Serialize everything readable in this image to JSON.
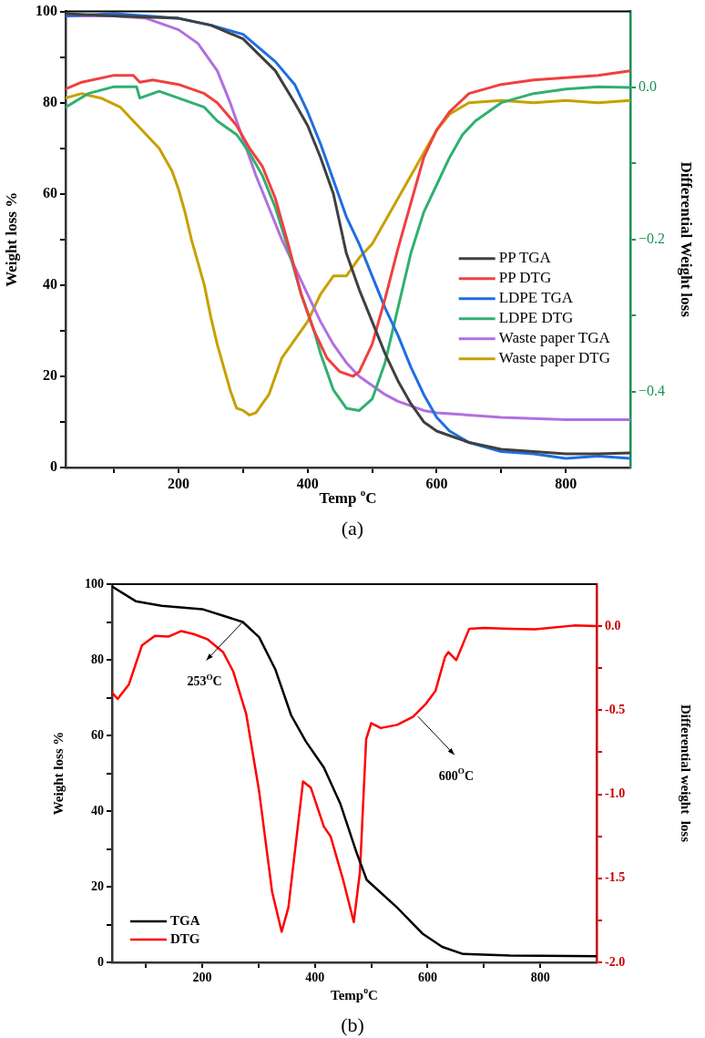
{
  "chart_data": [
    {
      "type": "line",
      "xlabel": "Temp $^{o}$C",
      "ylabel": "Weight loss %",
      "y2label": "Differential Weight loss",
      "xlim": [
        25,
        900
      ],
      "xticks": [
        {
          "value": 100,
          "label": null
        },
        200,
        {
          "value": 300,
          "label": null
        },
        400,
        {
          "value": 500,
          "label": null
        },
        600,
        {
          "value": 700,
          "label": null
        },
        800
      ],
      "ylim": [
        0,
        100
      ],
      "yticks": [
        0,
        {
          "value": 10,
          "label": null
        },
        20,
        {
          "value": 30,
          "label": null
        },
        40,
        {
          "value": 50,
          "label": null
        },
        60,
        {
          "value": 70,
          "label": null
        },
        80,
        {
          "value": 90,
          "label": null
        },
        100
      ],
      "y2lim": [
        -0.5,
        0.1
      ],
      "y2ticks": [
        {
          "value": -0.4,
          "label": "−0.4"
        },
        {
          "value": -0.3,
          "label": null
        },
        {
          "value": -0.2,
          "label": "−0.2"
        },
        {
          "value": -0.1,
          "label": null
        },
        {
          "value": 0,
          "label": "0.0"
        }
      ],
      "marker": "none",
      "legend": "right",
      "annotations": [
        "(a)"
      ],
      "series": [
        {
          "name": "PP TGA",
          "color": "#404040",
          "x": [
            25,
            100,
            200,
            250,
            300,
            350,
            380,
            400,
            420,
            440,
            460,
            480,
            500,
            520,
            540,
            560,
            580,
            600,
            620,
            650,
            700,
            750,
            800,
            850,
            900
          ],
          "values": [
            99.5,
            99,
            98.5,
            97,
            94,
            87,
            80,
            75,
            68,
            60,
            47,
            39,
            32,
            25,
            19,
            14,
            10,
            8,
            7,
            5.5,
            4,
            3.5,
            3,
            3,
            3.2
          ]
        },
        {
          "name": "PP DTG",
          "color": "#f04040",
          "axis": "y2",
          "x": [
            25,
            50,
            100,
            130,
            140,
            160,
            200,
            240,
            260,
            290,
            310,
            330,
            350,
            370,
            390,
            410,
            430,
            450,
            470,
            480,
            500,
            520,
            540,
            560,
            580,
            600,
            620,
            650,
            700,
            750,
            800,
            850,
            900
          ],
          "values": [
            -0.002,
            0.007,
            0.016,
            0.016,
            0.007,
            0.01,
            0.004,
            -0.008,
            -0.02,
            -0.05,
            -0.08,
            -0.104,
            -0.146,
            -0.206,
            -0.272,
            -0.32,
            -0.356,
            -0.374,
            -0.38,
            -0.374,
            -0.338,
            -0.278,
            -0.212,
            -0.152,
            -0.092,
            -0.056,
            -0.032,
            -0.008,
            0.004,
            0.01,
            0.013,
            0.016,
            0.022
          ]
        },
        {
          "name": "LDPE TGA",
          "color": "#1f6fe0",
          "x": [
            25,
            100,
            200,
            250,
            300,
            350,
            380,
            400,
            420,
            440,
            460,
            480,
            500,
            520,
            540,
            560,
            580,
            600,
            620,
            650,
            700,
            750,
            800,
            850,
            900
          ],
          "values": [
            99,
            99.5,
            98.5,
            97,
            95,
            89,
            84,
            78,
            71,
            63,
            55,
            49,
            42,
            35,
            29,
            22,
            16,
            11,
            8,
            5.5,
            3.5,
            3,
            2,
            2.5,
            2
          ]
        },
        {
          "name": "LDPE DTG",
          "color": "#30b070",
          "axis": "y2",
          "x": [
            25,
            60,
            100,
            135,
            140,
            170,
            200,
            240,
            260,
            290,
            310,
            330,
            350,
            370,
            390,
            410,
            420,
            440,
            460,
            480,
            500,
            520,
            540,
            560,
            580,
            600,
            620,
            640,
            660,
            700,
            750,
            800,
            850,
            900
          ],
          "values": [
            -0.026,
            -0.008,
            0.001,
            0.001,
            -0.014,
            -0.005,
            -0.014,
            -0.026,
            -0.044,
            -0.062,
            -0.086,
            -0.116,
            -0.158,
            -0.212,
            -0.272,
            -0.32,
            -0.35,
            -0.398,
            -0.422,
            -0.425,
            -0.41,
            -0.362,
            -0.29,
            -0.218,
            -0.164,
            -0.128,
            -0.092,
            -0.062,
            -0.044,
            -0.02,
            -0.008,
            -0.002,
            0.001,
            0
          ]
        },
        {
          "name": "Waste paper TGA",
          "color": "#b070e0",
          "x": [
            25,
            100,
            150,
            200,
            230,
            260,
            280,
            300,
            320,
            340,
            360,
            380,
            400,
            420,
            440,
            460,
            480,
            500,
            520,
            540,
            560,
            580,
            600,
            650,
            700,
            800,
            900
          ],
          "values": [
            99,
            99,
            98.5,
            96,
            93,
            87,
            80,
            72,
            64,
            57,
            50,
            44,
            38,
            32,
            27,
            23,
            20,
            18,
            16,
            14.5,
            13.5,
            12.5,
            12,
            11.5,
            11,
            10.5,
            10.5
          ]
        },
        {
          "name": "Waste paper DTG",
          "color": "#c8a000",
          "axis": "y2",
          "x": [
            25,
            50,
            80,
            110,
            130,
            150,
            170,
            190,
            200,
            210,
            220,
            240,
            250,
            260,
            270,
            280,
            290,
            300,
            310,
            320,
            330,
            340,
            350,
            360,
            380,
            400,
            420,
            440,
            460,
            480,
            500,
            520,
            540,
            560,
            580,
            600,
            620,
            650,
            700,
            750,
            800,
            850,
            900
          ],
          "values": [
            -0.014,
            -0.008,
            -0.014,
            -0.026,
            -0.044,
            -0.062,
            -0.08,
            -0.11,
            -0.134,
            -0.164,
            -0.2,
            -0.26,
            -0.302,
            -0.338,
            -0.368,
            -0.398,
            -0.422,
            -0.425,
            -0.431,
            -0.428,
            -0.416,
            -0.404,
            -0.38,
            -0.356,
            -0.332,
            -0.308,
            -0.272,
            -0.248,
            -0.248,
            -0.224,
            -0.206,
            -0.176,
            -0.146,
            -0.116,
            -0.086,
            -0.056,
            -0.035,
            -0.02,
            -0.017,
            -0.02,
            -0.017,
            -0.02,
            -0.017
          ]
        }
      ]
    },
    {
      "type": "line",
      "xlabel": "Temp$^{o}$C",
      "ylabel": "Weight loss %",
      "y2label": "Differential weight  loss",
      "xlim": [
        40,
        900
      ],
      "xticks": [
        {
          "value": 100,
          "label": null
        },
        200,
        {
          "value": 300,
          "label": null
        },
        400,
        {
          "value": 500,
          "label": null
        },
        600,
        {
          "value": 700,
          "label": null
        },
        800
      ],
      "ylim": [
        0,
        100
      ],
      "yticks": [
        0,
        {
          "value": 10,
          "label": null
        },
        20,
        {
          "value": 30,
          "label": null
        },
        40,
        {
          "value": 50,
          "label": null
        },
        60,
        {
          "value": 70,
          "label": null
        },
        80,
        {
          "value": 90,
          "label": null
        },
        100
      ],
      "y2lim": [
        -2,
        0.25
      ],
      "y2ticks": [
        {
          "value": -2,
          "label": "-2.0"
        },
        {
          "value": -1.75,
          "label": null
        },
        {
          "value": -1.5,
          "label": "-1.5"
        },
        {
          "value": -1.25,
          "label": null
        },
        {
          "value": -1,
          "label": "-1.0"
        },
        {
          "value": -0.75,
          "label": null
        },
        {
          "value": -0.5,
          "label": "-0.5"
        },
        {
          "value": -0.25,
          "label": null
        },
        {
          "value": 0,
          "label": "0.0"
        }
      ],
      "marker": "none",
      "legend": "bottom left",
      "annotations": [
        {
          "text": "253$^{O}$C",
          "x": 272,
          "y": 90
        },
        {
          "text": "600$^{O}$C",
          "x": 583,
          "y": 65
        },
        "(b)"
      ],
      "series": [
        {
          "name": "TGA",
          "color": "#000000",
          "x": [
            40,
            82,
            128,
            200,
            243,
            272,
            301,
            330,
            358,
            384,
            416,
            445,
            474,
            492,
            546,
            591,
            626,
            663,
            746,
            900
          ],
          "values": [
            99.4,
            95.5,
            94.3,
            93.4,
            91.4,
            90,
            86,
            77.4,
            65.3,
            58.4,
            51.5,
            42,
            29,
            21.8,
            14.5,
            7.6,
            4.1,
            2.2,
            1.8,
            1.6
          ]
        },
        {
          "name": "DTG",
          "color": "#ff0000",
          "axis": "y2",
          "x": [
            40,
            50,
            70,
            93,
            116,
            140,
            163,
            186,
            209,
            237,
            255,
            278,
            301,
            324,
            341,
            353,
            379,
            393,
            416,
            428,
            451,
            469,
            480,
            491,
            500,
            517,
            546,
            574,
            597,
            614,
            631,
            637,
            651,
            674,
            700,
            746,
            791,
            860,
            900
          ],
          "values": [
            -0.395,
            -0.433,
            -0.346,
            -0.115,
            -0.058,
            -0.062,
            -0.029,
            -0.048,
            -0.077,
            -0.154,
            -0.269,
            -0.52,
            -0.981,
            -1.578,
            -1.818,
            -1.674,
            -0.924,
            -0.962,
            -1.193,
            -1.251,
            -1.52,
            -1.76,
            -1.462,
            -0.673,
            -0.577,
            -0.606,
            -0.587,
            -0.539,
            -0.462,
            -0.385,
            -0.183,
            -0.154,
            -0.202,
            -0.015,
            -0.01,
            -0.015,
            -0.019,
            0.004,
            0
          ]
        }
      ]
    }
  ]
}
